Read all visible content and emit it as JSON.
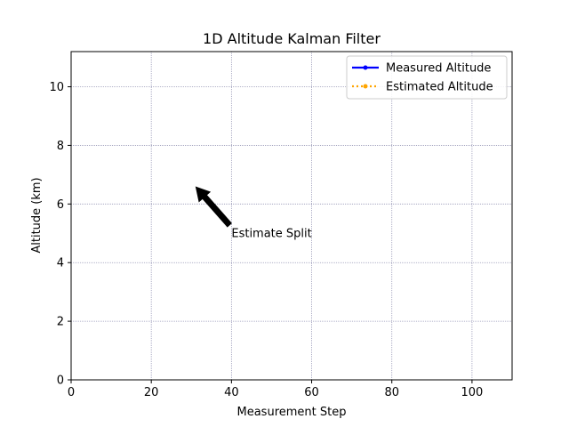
{
  "chart_data": {
    "type": "line",
    "title": "1D Altitude Kalman Filter",
    "xlabel": "Measurement Step",
    "ylabel": "Altitude (km)",
    "xlim": [
      0,
      110
    ],
    "ylim": [
      0,
      11.2
    ],
    "xticks": [
      0,
      20,
      40,
      60,
      80,
      100
    ],
    "yticks": [
      0,
      2,
      4,
      6,
      8,
      10
    ],
    "grid": true,
    "legend_position": "top-right",
    "series": [
      {
        "name": "Measured Altitude",
        "color": "#0000ff",
        "linestyle": "solid",
        "marker": "circle",
        "x": [],
        "y": []
      },
      {
        "name": "Estimated Altitude",
        "color": "#ffa500",
        "linestyle": "dotted",
        "marker": "circle",
        "x": [],
        "y": []
      }
    ],
    "annotations": [
      {
        "text": "Estimate Split",
        "text_x": 40,
        "text_y": 5.0,
        "arrow_to_x": 31,
        "arrow_to_y": 6.6
      }
    ]
  }
}
